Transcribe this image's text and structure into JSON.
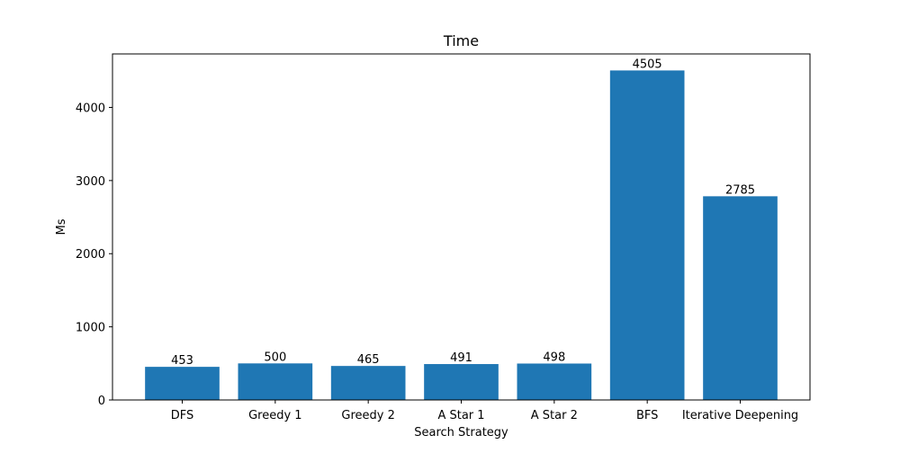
{
  "chart_data": {
    "type": "bar",
    "title": "Time",
    "xlabel": "Search Strategy",
    "ylabel": "Ms",
    "categories": [
      "DFS",
      "Greedy 1",
      "Greedy 2",
      "A Star 1",
      "A Star 2",
      "BFS",
      "Iterative Deepening"
    ],
    "values": [
      453,
      500,
      465,
      491,
      498,
      4505,
      2785
    ],
    "data_labels": [
      "453",
      "500",
      "465",
      "491",
      "498",
      "4505",
      "2785"
    ],
    "yticks": [
      0,
      1000,
      2000,
      3000,
      4000
    ],
    "ytick_labels": [
      "0",
      "1000",
      "2000",
      "3000",
      "4000"
    ],
    "ylim": [
      0,
      4731
    ],
    "grid": false,
    "bar_color": "#1f77b4"
  }
}
